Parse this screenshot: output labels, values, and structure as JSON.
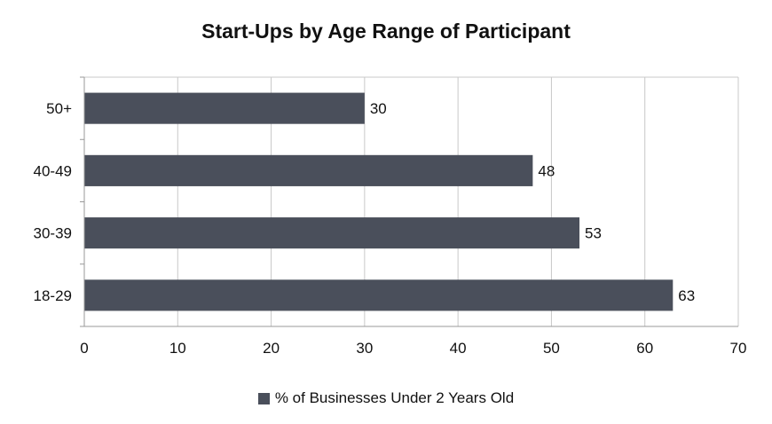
{
  "chart_data": {
    "type": "bar",
    "orientation": "horizontal",
    "title": "Start-Ups by Age Range of Participant",
    "categories": [
      "50+",
      "40-49",
      "30-39",
      "18-29"
    ],
    "series": [
      {
        "name": "% of Businesses Under 2 Years Old",
        "values": [
          30,
          48,
          53,
          63
        ],
        "color": "#4a4f5b"
      }
    ],
    "data_labels": [
      "30",
      "48",
      "53",
      "63"
    ],
    "xlim": [
      0,
      70
    ],
    "x_ticks": [
      "0",
      "10",
      "20",
      "30",
      "40",
      "50",
      "60",
      "70"
    ],
    "grid": true,
    "legend_position": "bottom"
  },
  "colors": {
    "bar": "#4a4f5b",
    "grid": "#c8c8c8",
    "axis": "#999999"
  }
}
